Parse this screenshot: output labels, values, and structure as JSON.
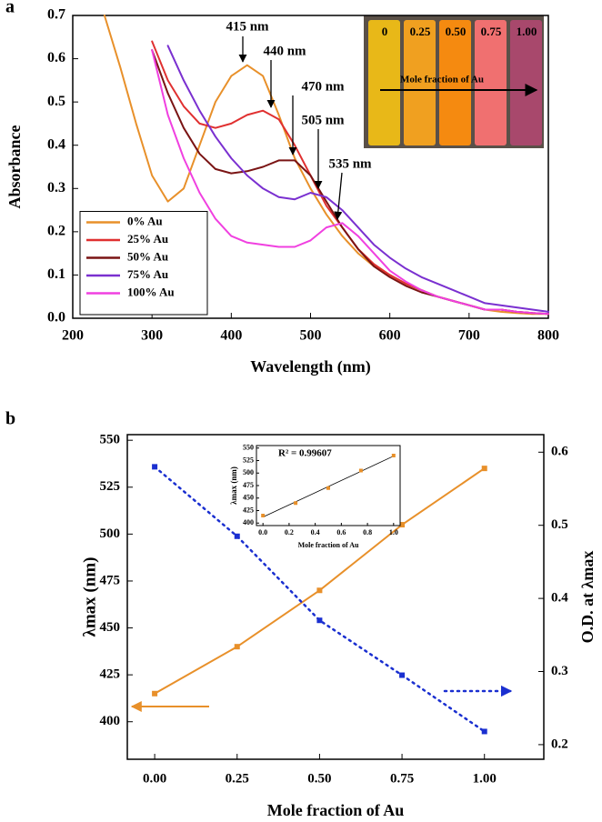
{
  "chart_data": [
    {
      "type": "line",
      "panel": "a",
      "xlabel": "Wavelength (nm)",
      "ylabel": "Absorbance",
      "x": [
        240,
        260,
        280,
        300,
        320,
        340,
        360,
        380,
        400,
        420,
        440,
        460,
        480,
        500,
        520,
        540,
        560,
        580,
        600,
        620,
        640,
        660,
        680,
        700,
        720,
        740,
        760,
        780,
        800
      ],
      "xlim": [
        200,
        800
      ],
      "xticks": [
        200,
        300,
        400,
        500,
        600,
        700,
        800
      ],
      "ylim": [
        0,
        0.7
      ],
      "yticks": [
        {
          "value": 0,
          "label": "0.0"
        },
        0.1,
        0.2,
        0.3,
        0.4,
        0.5,
        0.6,
        0.7
      ],
      "legend": "lower left",
      "series": [
        {
          "name": "0% Au",
          "color": "#e8902a",
          "values": [
            0.7,
            0.58,
            0.45,
            0.33,
            0.27,
            0.3,
            0.4,
            0.5,
            0.56,
            0.585,
            0.56,
            0.47,
            0.37,
            0.3,
            0.24,
            0.19,
            0.15,
            0.12,
            0.1,
            0.08,
            0.065,
            0.05,
            0.04,
            0.03,
            0.02,
            0.015,
            0.012,
            0.01,
            0.01
          ]
        },
        {
          "name": "25% Au",
          "color": "#e03030",
          "values": [
            null,
            null,
            null,
            0.64,
            0.55,
            0.49,
            0.45,
            0.44,
            0.45,
            0.47,
            0.48,
            0.46,
            0.4,
            0.33,
            0.26,
            0.21,
            0.16,
            0.125,
            0.1,
            0.08,
            0.065,
            0.05,
            0.04,
            0.03,
            0.02,
            0.02,
            0.015,
            0.012,
            0.01
          ]
        },
        {
          "name": "50% Au",
          "color": "#7a1414",
          "values": [
            null,
            null,
            null,
            0.62,
            0.52,
            0.44,
            0.38,
            0.345,
            0.335,
            0.34,
            0.35,
            0.365,
            0.365,
            0.33,
            0.27,
            0.21,
            0.16,
            0.12,
            0.095,
            0.075,
            0.06,
            0.05,
            0.04,
            0.03,
            0.02,
            0.02,
            0.015,
            0.012,
            0.01
          ]
        },
        {
          "name": "75% Au",
          "color": "#7a30d0",
          "values": [
            null,
            null,
            null,
            null,
            0.63,
            0.55,
            0.48,
            0.42,
            0.37,
            0.33,
            0.3,
            0.28,
            0.275,
            0.29,
            0.28,
            0.25,
            0.21,
            0.17,
            0.14,
            0.115,
            0.095,
            0.08,
            0.065,
            0.05,
            0.035,
            0.03,
            0.025,
            0.02,
            0.015
          ]
        },
        {
          "name": "100% Au",
          "color": "#f040e0",
          "values": [
            null,
            null,
            null,
            0.62,
            0.47,
            0.37,
            0.29,
            0.23,
            0.19,
            0.175,
            0.17,
            0.165,
            0.165,
            0.18,
            0.21,
            0.22,
            0.19,
            0.15,
            0.11,
            0.085,
            0.065,
            0.05,
            0.04,
            0.03,
            0.02,
            0.02,
            0.015,
            0.012,
            0.01
          ]
        }
      ],
      "annotations": [
        "415 nm",
        "440 nm",
        "470 nm",
        "505 nm",
        "535 nm"
      ],
      "inset_labels": [
        "0",
        "0.25",
        "0.50",
        "0.75",
        "1.00"
      ],
      "inset_caption": "Mole fraction of Au"
    },
    {
      "type": "line",
      "panel": "b",
      "xlabel": "Mole fraction of Au",
      "ylabel": "λmax (nm)",
      "y2label": "O.D. at λmax",
      "x": [
        0,
        0.25,
        0.5,
        0.75,
        1
      ],
      "xlim": [
        -0.083,
        1.18
      ],
      "xticks": [
        {
          "value": 0,
          "label": "0.00"
        },
        0.25,
        {
          "value": 0.5,
          "label": "0.50"
        },
        0.75,
        {
          "value": 1,
          "label": "1.00"
        }
      ],
      "ylim": [
        380,
        553
      ],
      "yticks": [
        400,
        425,
        450,
        475,
        500,
        525,
        550
      ],
      "y2lim": [
        0.18,
        0.624
      ],
      "y2ticks": [
        0.2,
        0.3,
        0.4,
        0.5,
        0.6
      ],
      "marker": "square",
      "series": [
        {
          "color": "#e8902a",
          "values": [
            415,
            440,
            470,
            505,
            535
          ]
        },
        {
          "color": "#1a2fd0",
          "axis": "y2",
          "style": "dotted",
          "values": [
            0.58,
            0.485,
            0.37,
            0.295,
            0.218
          ]
        }
      ]
    },
    {
      "type": "scatter",
      "xlabel": "Mole fraction of Au",
      "ylabel": "λmax (nm)",
      "x": [
        0,
        0.25,
        0.5,
        0.75,
        1
      ],
      "values": [
        415,
        440,
        470,
        505,
        535
      ],
      "color": "#e8902a",
      "marker": "square",
      "fit": "linear",
      "annotation": "R² = 0.99607",
      "xlim": [
        -0.05,
        1.05
      ],
      "xticks": [
        {
          "value": 0,
          "label": "0.0"
        },
        0.2,
        0.4,
        0.6,
        0.8,
        {
          "value": 1,
          "label": "1.0"
        }
      ],
      "ylim": [
        395,
        555
      ],
      "yticks": [
        400,
        425,
        450,
        475,
        500,
        525,
        550
      ]
    }
  ]
}
